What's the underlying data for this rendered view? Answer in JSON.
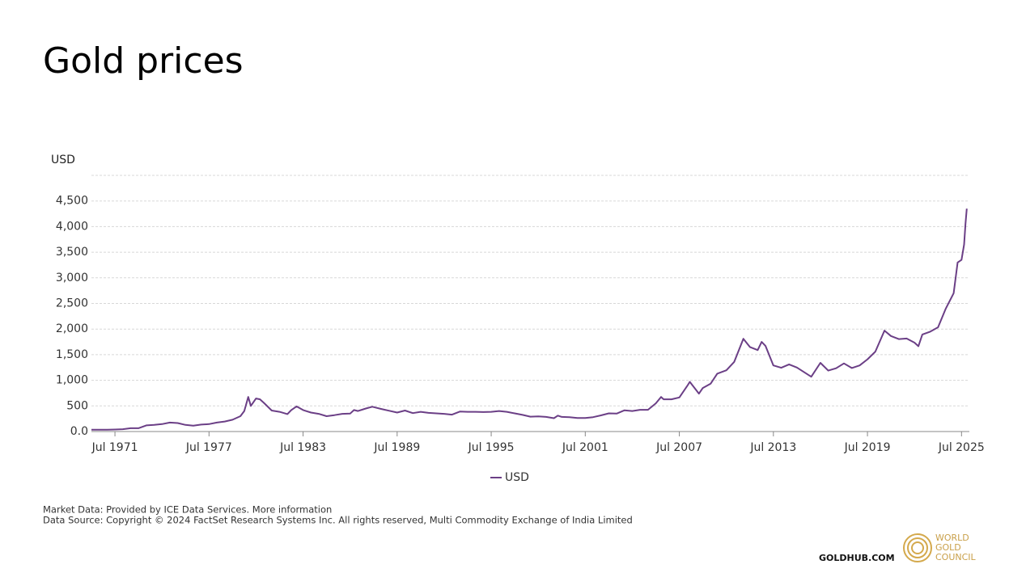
{
  "chart_data": {
    "type": "line",
    "title": "Gold prices",
    "y_label": "USD",
    "x": [
      "Jan 1970",
      "Jul 1970",
      "Jan 1971",
      "Jul 1971",
      "Jan 1972",
      "Jul 1972",
      "Jan 1973",
      "Jul 1973",
      "Jan 1974",
      "Jul 1974",
      "Jan 1975",
      "Jul 1975",
      "Jan 1976",
      "Jul 1976",
      "Jan 1977",
      "Jul 1977",
      "Jan 1978",
      "Jul 1978",
      "Jan 1979",
      "Jul 1979",
      "Oct 1979",
      "Jan 1980",
      "Mar 1980",
      "Jul 1980",
      "Oct 1980",
      "Jan 1981",
      "Jul 1981",
      "Jan 1982",
      "Jul 1982",
      "Oct 1982",
      "Feb 1983",
      "Jul 1983",
      "Jan 1984",
      "Jul 1984",
      "Jan 1985",
      "Jul 1985",
      "Jan 1986",
      "Jul 1986",
      "Oct 1986",
      "Jan 1987",
      "Jul 1987",
      "Dec 1987",
      "Jul 1988",
      "Jan 1989",
      "Jul 1989",
      "Jan 1990",
      "Jul 1990",
      "Jan 1991",
      "Jul 1991",
      "Jan 1992",
      "Jul 1992",
      "Jan 1993",
      "Jul 1993",
      "Jan 1994",
      "Jul 1994",
      "Jan 1995",
      "Jul 1995",
      "Jan 1996",
      "Jul 1996",
      "Jan 1997",
      "Jul 1997",
      "Jan 1998",
      "Jul 1998",
      "Jan 1999",
      "Jul 1999",
      "Oct 1999",
      "Jan 2000",
      "Jul 2000",
      "Jan 2001",
      "Jul 2001",
      "Jan 2002",
      "Jul 2002",
      "Jan 2003",
      "Jul 2003",
      "Jan 2004",
      "Jul 2004",
      "Jan 2005",
      "Jul 2005",
      "Jan 2006",
      "May 2006",
      "Jul 2006",
      "Jan 2007",
      "Jul 2007",
      "Jan 2008",
      "Mar 2008",
      "Oct 2008",
      "Jan 2009",
      "Jul 2009",
      "Dec 2009",
      "Jul 2010",
      "Jan 2011",
      "Aug 2011",
      "Jan 2012",
      "Jul 2012",
      "Oct 2012",
      "Jan 2013",
      "Jul 2013",
      "Jan 2014",
      "Jul 2014",
      "Jan 2015",
      "Dec 2015",
      "Jul 2016",
      "Jan 2017",
      "Jul 2017",
      "Jan 2018",
      "Jul 2018",
      "Jan 2019",
      "Jul 2019",
      "Jan 2020",
      "Aug 2020",
      "Jan 2021",
      "Jul 2021",
      "Jan 2022",
      "Jul 2022",
      "Oct 2022",
      "Jan 2023",
      "Jul 2023",
      "Jan 2024",
      "Jul 2024",
      "Jan 2025",
      "Apr 2025",
      "Jul 2025",
      "Sep 2025",
      "Oct 2025",
      "Nov 2025"
    ],
    "series": [
      {
        "name": "USD",
        "color": "#6b3f86",
        "values": [
          35,
          35,
          37,
          40,
          46,
          65,
          65,
          120,
          130,
          145,
          175,
          165,
          130,
          115,
          135,
          145,
          175,
          195,
          230,
          300,
          400,
          675,
          500,
          645,
          630,
          560,
          410,
          385,
          340,
          420,
          490,
          420,
          370,
          345,
          300,
          320,
          345,
          350,
          420,
          400,
          450,
          485,
          440,
          405,
          370,
          410,
          360,
          385,
          365,
          355,
          345,
          330,
          390,
          385,
          385,
          380,
          385,
          400,
          385,
          355,
          325,
          290,
          295,
          285,
          260,
          310,
          285,
          280,
          265,
          265,
          280,
          315,
          355,
          350,
          415,
          400,
          425,
          425,
          550,
          675,
          630,
          630,
          665,
          890,
          970,
          740,
          850,
          935,
          1130,
          1195,
          1360,
          1810,
          1650,
          1590,
          1750,
          1670,
          1290,
          1245,
          1310,
          1250,
          1070,
          1340,
          1190,
          1235,
          1330,
          1240,
          1290,
          1410,
          1560,
          1970,
          1865,
          1805,
          1815,
          1735,
          1665,
          1895,
          1950,
          2035,
          2400,
          2700,
          3300,
          3350,
          3650,
          4050,
          4350
        ]
      }
    ],
    "xlim": [
      "Jan 1970",
      "Jan 2026"
    ],
    "xticks": [
      "Jul 1971",
      "Jul 1977",
      "Jul 1983",
      "Jul 1989",
      "Jul 1995",
      "Jul 2001",
      "Jul 2007",
      "Jul 2013",
      "Jul 2019",
      "Jul 2025"
    ],
    "ylim": [
      0,
      5000
    ],
    "yticks": [
      {
        "value": 0,
        "label": "0.0"
      },
      500,
      {
        "value": 1000,
        "label": "1,000"
      },
      {
        "value": 1500,
        "label": "1,500"
      },
      {
        "value": 2000,
        "label": "2,000"
      },
      {
        "value": 2500,
        "label": "2,500"
      },
      {
        "value": 3000,
        "label": "3,000"
      },
      {
        "value": 3500,
        "label": "3,500"
      },
      {
        "value": 4000,
        "label": "4,000"
      },
      {
        "value": 4500,
        "label": "4,500"
      }
    ],
    "grid": true,
    "legend": "bottom",
    "footnotes": [
      "Market Data: Provided by ICE Data Services. More information",
      "Data Source: Copyright © 2024 FactSet Research Systems Inc. All rights reserved, Multi Commodity Exchange of India Limited"
    ],
    "site": "GOLDHUB.COM",
    "logo": [
      "WORLD",
      "GOLD",
      "COUNCIL"
    ]
  }
}
